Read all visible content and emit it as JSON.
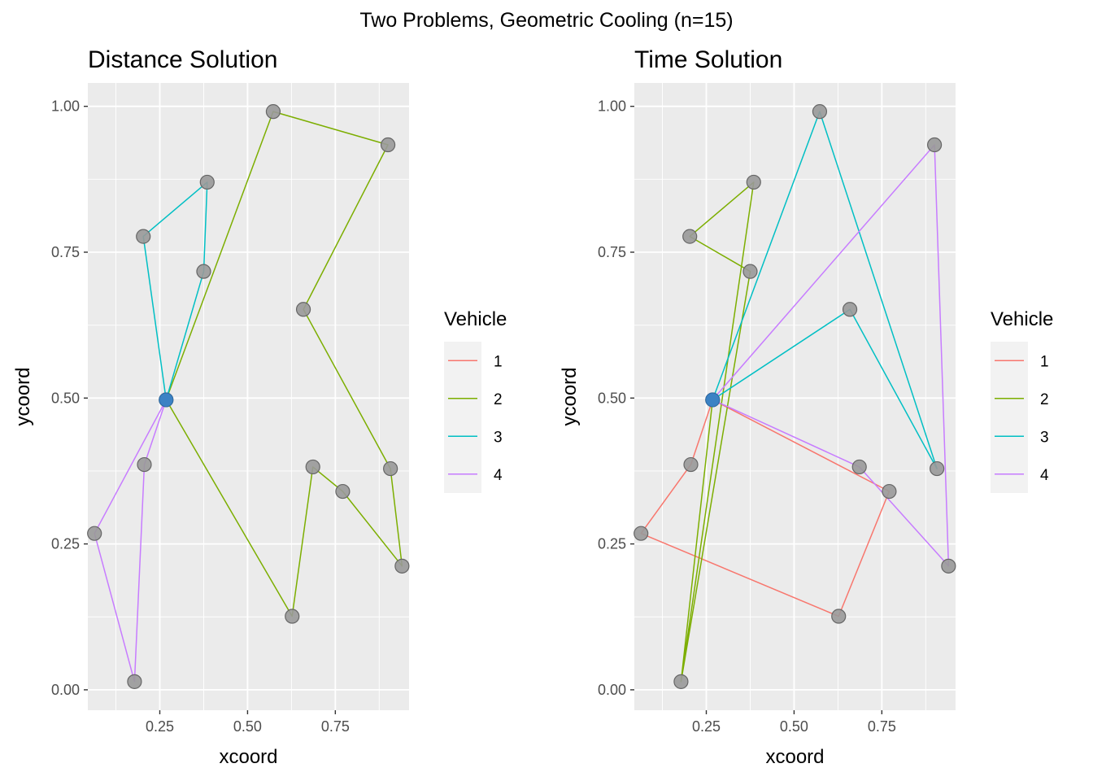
{
  "figure": {
    "title": "Two Problems, Geometric Cooling (n=15)"
  },
  "chart_data": [
    {
      "type": "scatter",
      "title": "Distance Solution",
      "xlabel": "xcoord",
      "ylabel": "ycoord",
      "xlim": [
        0.045,
        0.96
      ],
      "ylim": [
        -0.035,
        1.04
      ],
      "x_ticks": [
        0.25,
        0.5,
        0.75
      ],
      "x_tick_labels": [
        "0.25",
        "0.50",
        "0.75"
      ],
      "y_ticks": [
        0,
        0.25,
        0.5,
        0.75,
        1
      ],
      "y_tick_labels": [
        "0.00",
        "0.25",
        "0.50",
        "0.75",
        "1.00"
      ],
      "grid": true,
      "legend_placement": "right",
      "legend": {
        "title": "Vehicle",
        "entries": [
          {
            "label": "1",
            "color": "#F8766D"
          },
          {
            "label": "2",
            "color": "#7CAE00"
          },
          {
            "label": "3",
            "color": "#00BFC4"
          },
          {
            "label": "4",
            "color": "#C77CFF"
          }
        ]
      },
      "depot": {
        "x": 0.268,
        "y": 0.497
      },
      "points": [
        {
          "x": 0.268,
          "y": 0.497
        },
        {
          "x": 0.573,
          "y": 0.991
        },
        {
          "x": 0.9,
          "y": 0.934
        },
        {
          "x": 0.385,
          "y": 0.87
        },
        {
          "x": 0.203,
          "y": 0.777
        },
        {
          "x": 0.375,
          "y": 0.717
        },
        {
          "x": 0.659,
          "y": 0.652
        },
        {
          "x": 0.206,
          "y": 0.386
        },
        {
          "x": 0.686,
          "y": 0.382
        },
        {
          "x": 0.907,
          "y": 0.379
        },
        {
          "x": 0.771,
          "y": 0.34
        },
        {
          "x": 0.064,
          "y": 0.268
        },
        {
          "x": 0.94,
          "y": 0.212
        },
        {
          "x": 0.627,
          "y": 0.126
        },
        {
          "x": 0.178,
          "y": 0.014
        }
      ],
      "routes": [
        {
          "vehicle": "2",
          "color": "#7CAE00",
          "path": [
            [
              0.268,
              0.497
            ],
            [
              0.573,
              0.991
            ],
            [
              0.9,
              0.934
            ],
            [
              0.659,
              0.652
            ],
            [
              0.907,
              0.379
            ],
            [
              0.94,
              0.212
            ],
            [
              0.771,
              0.34
            ],
            [
              0.686,
              0.382
            ],
            [
              0.627,
              0.126
            ],
            [
              0.268,
              0.497
            ]
          ]
        },
        {
          "vehicle": "3",
          "color": "#00BFC4",
          "path": [
            [
              0.268,
              0.497
            ],
            [
              0.375,
              0.717
            ],
            [
              0.385,
              0.87
            ],
            [
              0.203,
              0.777
            ],
            [
              0.268,
              0.497
            ]
          ]
        },
        {
          "vehicle": "4",
          "color": "#C77CFF",
          "path": [
            [
              0.268,
              0.497
            ],
            [
              0.064,
              0.268
            ],
            [
              0.178,
              0.014
            ],
            [
              0.206,
              0.386
            ],
            [
              0.268,
              0.497
            ]
          ]
        }
      ]
    },
    {
      "type": "scatter",
      "title": "Time Solution",
      "xlabel": "xcoord",
      "ylabel": "ycoord",
      "xlim": [
        0.045,
        0.96
      ],
      "ylim": [
        -0.035,
        1.04
      ],
      "x_ticks": [
        0.25,
        0.5,
        0.75
      ],
      "x_tick_labels": [
        "0.25",
        "0.50",
        "0.75"
      ],
      "y_ticks": [
        0,
        0.25,
        0.5,
        0.75,
        1
      ],
      "y_tick_labels": [
        "0.00",
        "0.25",
        "0.50",
        "0.75",
        "1.00"
      ],
      "grid": true,
      "legend_placement": "right",
      "legend": {
        "title": "Vehicle",
        "entries": [
          {
            "label": "1",
            "color": "#F8766D"
          },
          {
            "label": "2",
            "color": "#7CAE00"
          },
          {
            "label": "3",
            "color": "#00BFC4"
          },
          {
            "label": "4",
            "color": "#C77CFF"
          }
        ]
      },
      "depot": {
        "x": 0.268,
        "y": 0.497
      },
      "points": [
        {
          "x": 0.268,
          "y": 0.497
        },
        {
          "x": 0.573,
          "y": 0.991
        },
        {
          "x": 0.9,
          "y": 0.934
        },
        {
          "x": 0.385,
          "y": 0.87
        },
        {
          "x": 0.203,
          "y": 0.777
        },
        {
          "x": 0.375,
          "y": 0.717
        },
        {
          "x": 0.659,
          "y": 0.652
        },
        {
          "x": 0.206,
          "y": 0.386
        },
        {
          "x": 0.686,
          "y": 0.382
        },
        {
          "x": 0.907,
          "y": 0.379
        },
        {
          "x": 0.771,
          "y": 0.34
        },
        {
          "x": 0.064,
          "y": 0.268
        },
        {
          "x": 0.94,
          "y": 0.212
        },
        {
          "x": 0.627,
          "y": 0.126
        },
        {
          "x": 0.178,
          "y": 0.014
        }
      ],
      "routes": [
        {
          "vehicle": "1",
          "color": "#F8766D",
          "path": [
            [
              0.268,
              0.497
            ],
            [
              0.206,
              0.386
            ],
            [
              0.064,
              0.268
            ],
            [
              0.627,
              0.126
            ],
            [
              0.771,
              0.34
            ],
            [
              0.268,
              0.497
            ]
          ]
        },
        {
          "vehicle": "2",
          "color": "#7CAE00",
          "path": [
            [
              0.268,
              0.497
            ],
            [
              0.178,
              0.014
            ],
            [
              0.375,
              0.717
            ],
            [
              0.203,
              0.777
            ],
            [
              0.385,
              0.87
            ],
            [
              0.178,
              0.014
            ],
            [
              0.268,
              0.497
            ]
          ]
        },
        {
          "vehicle": "3",
          "color": "#00BFC4",
          "path": [
            [
              0.268,
              0.497
            ],
            [
              0.573,
              0.991
            ],
            [
              0.907,
              0.379
            ],
            [
              0.659,
              0.652
            ],
            [
              0.268,
              0.497
            ]
          ]
        },
        {
          "vehicle": "4",
          "color": "#C77CFF",
          "path": [
            [
              0.268,
              0.497
            ],
            [
              0.686,
              0.382
            ],
            [
              0.94,
              0.212
            ],
            [
              0.9,
              0.934
            ],
            [
              0.268,
              0.497
            ]
          ]
        }
      ]
    }
  ]
}
